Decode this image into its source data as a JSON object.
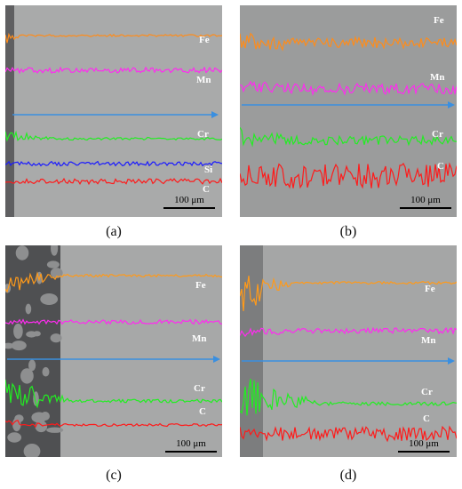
{
  "panels": [
    {
      "id": "a",
      "caption": "(a)",
      "scale_bar": "100 μm",
      "colors": {
        "bg": "#a9aaaa",
        "left": "#5f5f61"
      },
      "elements": [
        {
          "label": "Fe",
          "color": "#ff8c1a"
        },
        {
          "label": "Mn",
          "color": "#ff2bf0"
        },
        {
          "label": "Cr",
          "color": "#22ee22"
        },
        {
          "label": "Si",
          "color": "#1a1aff"
        },
        {
          "label": "C",
          "color": "#ff1a1a"
        }
      ],
      "arrow_color": "#3a8fe0"
    },
    {
      "id": "b",
      "caption": "(b)",
      "scale_bar": "100 μm",
      "colors": {
        "bg": "#9b9c9c",
        "left": "#8c8d8d"
      },
      "elements": [
        {
          "label": "Fe",
          "color": "#ff8c1a"
        },
        {
          "label": "Mn",
          "color": "#ff2bf0"
        },
        {
          "label": "Cr",
          "color": "#22ee22"
        },
        {
          "label": "C",
          "color": "#ff1a1a"
        }
      ],
      "arrow_color": "#3a8fe0"
    },
    {
      "id": "c",
      "caption": "(c)",
      "scale_bar": "100 μm",
      "colors": {
        "bg": "#a7a8a8",
        "left": "#4f5052"
      },
      "elements": [
        {
          "label": "Fe",
          "color": "#ff9a1a"
        },
        {
          "label": "Mn",
          "color": "#ff2bf0"
        },
        {
          "label": "Cr",
          "color": "#22ee22"
        },
        {
          "label": "C",
          "color": "#ff1a1a"
        }
      ],
      "arrow_color": "#3a8fe0"
    },
    {
      "id": "d",
      "caption": "(d)",
      "scale_bar": "100 μm",
      "colors": {
        "bg": "#a5a6a6",
        "left": "#7c7d7e"
      },
      "elements": [
        {
          "label": "Fe",
          "color": "#ff9a1a"
        },
        {
          "label": "Mn",
          "color": "#ff2bf0"
        },
        {
          "label": "Cr",
          "color": "#22ee22"
        },
        {
          "label": "C",
          "color": "#ff1a1a"
        }
      ],
      "arrow_color": "#3a8fe0"
    }
  ]
}
